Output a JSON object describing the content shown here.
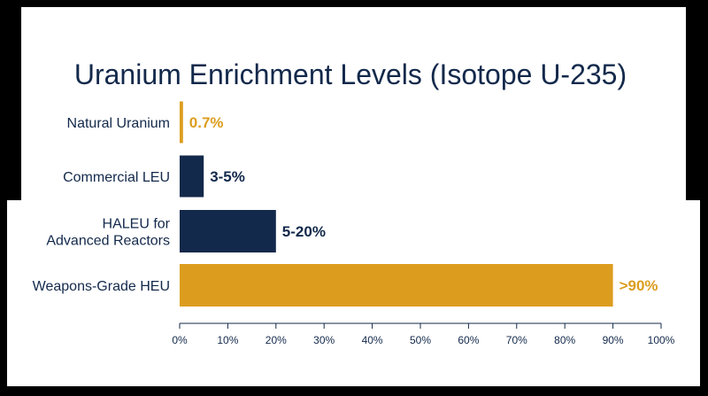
{
  "chart_data": {
    "type": "bar",
    "orientation": "horizontal",
    "title": "Uranium Enrichment Levels (Isotope U-235)",
    "categories": [
      [
        "Natural Uranium"
      ],
      [
        "Commercial LEU"
      ],
      [
        "HALEU for",
        "Advanced Reactors"
      ],
      [
        "Weapons-Grade HEU"
      ]
    ],
    "values": [
      0.7,
      5,
      20,
      90
    ],
    "value_labels": [
      "0.7%",
      "3-5%",
      "5-20%",
      ">90%"
    ],
    "highlight": [
      true,
      false,
      false,
      true
    ],
    "xlim": [
      0,
      100
    ],
    "xticks": [
      0,
      10,
      20,
      30,
      40,
      50,
      60,
      70,
      80,
      90,
      100
    ],
    "xtick_labels": [
      "0%",
      "10%",
      "20%",
      "30%",
      "40%",
      "50%",
      "60%",
      "70%",
      "80%",
      "90%",
      "100%"
    ],
    "grid": false,
    "colors": {
      "primary": "#13294b",
      "highlight": "#dc9d1f"
    }
  }
}
